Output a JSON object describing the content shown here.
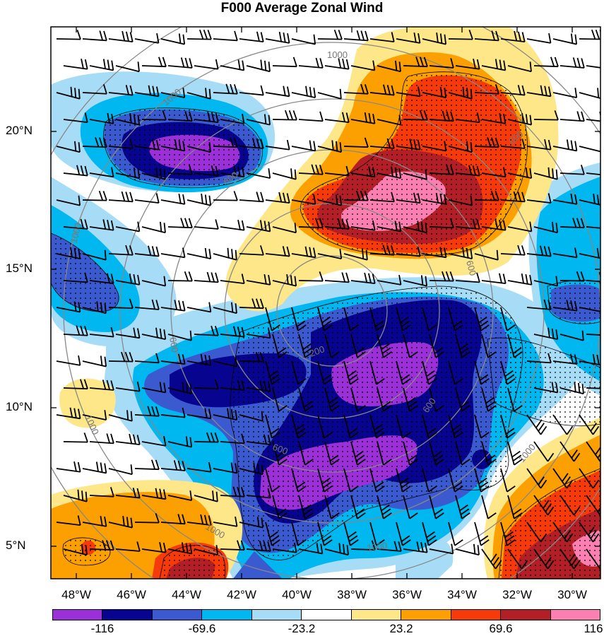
{
  "title": "F000 Average Zonal Wind",
  "lat_labels": [
    "20°N",
    "15°N",
    "10°N",
    "5°N"
  ],
  "lon_labels": [
    "48°W",
    "46°W",
    "44°W",
    "42°W",
    "40°W",
    "38°W",
    "36°W",
    "34°W",
    "32°W",
    "30°W"
  ],
  "contour_labels": [
    "1000",
    "1000",
    "1000",
    "1000",
    "1000",
    "1000",
    "600",
    "600",
    "600",
    "600",
    "600",
    "200",
    "600",
    "1000"
  ],
  "colorbar": {
    "colors": [
      "#9b30d9",
      "#07058f",
      "#3c5ad0",
      "#00b7ef",
      "#a7dcf7",
      "#ffffff",
      "#fde789",
      "#fba000",
      "#f73a0a",
      "#b31f26",
      "#fb7fb0"
    ],
    "labels": [
      "-116",
      "-69.6",
      "-23.2",
      "23.2",
      "69.6",
      "116"
    ]
  },
  "colors": {
    "frame": "#000000",
    "range_ring": "#888888",
    "barb": "#000000"
  }
}
